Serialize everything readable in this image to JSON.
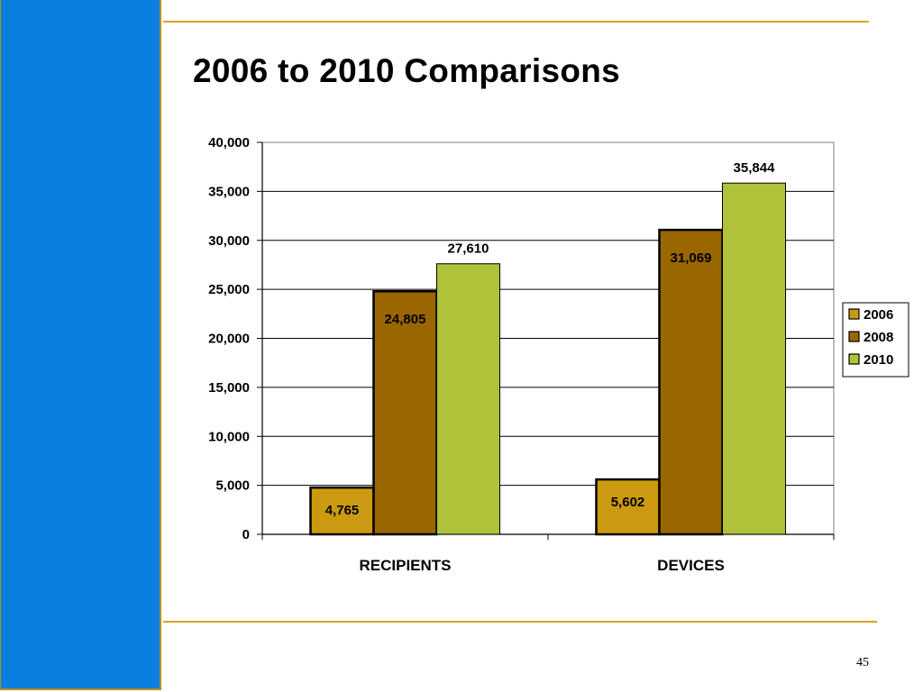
{
  "slide": {
    "title": "2006 to 2010 Comparisons",
    "page_number": "45"
  },
  "colors": {
    "sidebar": "#0a7fe0",
    "rule": "#d7a51c",
    "series_2006": "#cc9a10",
    "series_2008": "#996600",
    "series_2010": "#b0c23a"
  },
  "chart_data": {
    "type": "bar",
    "title": "",
    "xlabel": "",
    "ylabel": "",
    "categories": [
      "RECIPIENTS",
      "DEVICES"
    ],
    "series": [
      {
        "name": "2006",
        "values": [
          4765,
          5602
        ],
        "labels": [
          "4,765",
          "5,602"
        ],
        "color": "#cc9a10"
      },
      {
        "name": "2008",
        "values": [
          24805,
          31069
        ],
        "labels": [
          "24,805",
          "31,069"
        ],
        "color": "#996600"
      },
      {
        "name": "2010",
        "values": [
          27610,
          35844
        ],
        "labels": [
          "27,610",
          "35,844"
        ],
        "color": "#b0c23a"
      }
    ],
    "ylim": [
      0,
      40000
    ],
    "yticks": [
      0,
      5000,
      10000,
      15000,
      20000,
      25000,
      30000,
      35000,
      40000
    ],
    "ytick_labels": [
      "0",
      "5,000",
      "10,000",
      "15,000",
      "20,000",
      "25,000",
      "30,000",
      "35,000",
      "40,000"
    ],
    "grid": true,
    "legend_position": "right"
  }
}
